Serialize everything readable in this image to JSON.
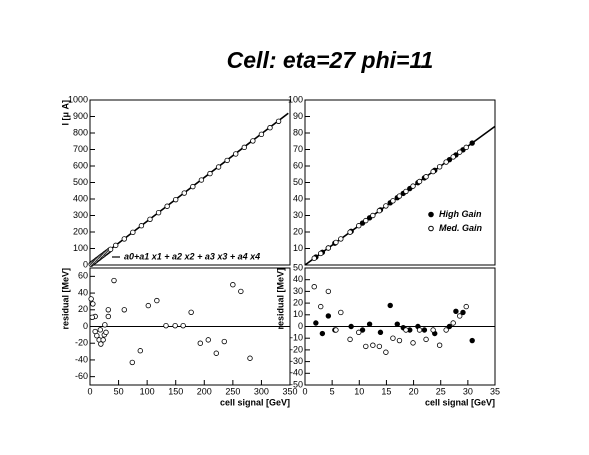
{
  "title": "Cell: eta=27 phi=11",
  "chart_data": [
    {
      "type": "scatter",
      "ylabel": "I [μ A]",
      "xlim": [
        0,
        350
      ],
      "ylim": [
        0,
        1000
      ],
      "yticks": [
        0,
        100,
        200,
        300,
        400,
        500,
        600,
        700,
        800,
        900,
        1000
      ],
      "legend": "lower right",
      "series": [
        {
          "name": "a0+a1 x1 + a2 x2 + a3 x3 + a4 x4",
          "style": "line",
          "color": "#000000",
          "x": [
            0,
            347
          ],
          "values": [
            0,
            920
          ]
        },
        {
          "style": "open",
          "color": "#000000",
          "x": [
            2,
            4,
            6,
            8,
            10,
            12,
            14,
            16,
            18,
            20,
            22,
            24,
            26,
            28,
            30,
            32,
            34,
            36,
            45,
            60,
            75,
            90,
            105,
            120,
            135,
            150,
            165,
            180,
            195,
            210,
            225,
            240,
            255,
            270,
            285,
            300,
            315,
            330
          ],
          "values": [
            5,
            11,
            16,
            21,
            26,
            32,
            37,
            42,
            48,
            53,
            58,
            63,
            69,
            74,
            79,
            84,
            90,
            95,
            119,
            158,
            198,
            238,
            277,
            317,
            356,
            396,
            436,
            475,
            515,
            554,
            594,
            634,
            673,
            713,
            752,
            792,
            832,
            871
          ]
        }
      ]
    },
    {
      "type": "scatter",
      "ylabel": "residual [MeV]",
      "xlabel": "cell signal [GeV]",
      "xlim": [
        0,
        350
      ],
      "ylim": [
        -70,
        70
      ],
      "xticks": [
        0,
        50,
        100,
        150,
        200,
        250,
        300,
        350
      ],
      "yticks": [
        -60,
        -40,
        -20,
        0,
        20,
        40,
        60
      ],
      "reference_line": 0,
      "series": [
        {
          "style": "open",
          "color": "#000000",
          "x": [
            2,
            5,
            9,
            4,
            9,
            12,
            16,
            19,
            23,
            18,
            25,
            28,
            26,
            32,
            32,
            42,
            60,
            74,
            88,
            102,
            117,
            133,
            149,
            163,
            177,
            193,
            207,
            221,
            235,
            250,
            264,
            280
          ],
          "values": [
            33,
            27,
            12,
            11,
            -6,
            -11,
            -16,
            -21,
            -16,
            -4,
            -10,
            -7,
            2,
            12,
            20,
            55,
            20,
            -43,
            -29,
            25,
            31,
            1,
            1,
            1,
            17,
            -20,
            -16,
            -32,
            -18,
            50,
            42,
            -38
          ]
        }
      ]
    },
    {
      "type": "scatter",
      "xlim": [
        0,
        35
      ],
      "ylim": [
        0,
        100
      ],
      "yticks": [
        10,
        20,
        30,
        40,
        50,
        60,
        70,
        80,
        90,
        100
      ],
      "legend": "right",
      "series": [
        {
          "style": "line",
          "color": "#000000",
          "x": [
            0,
            35
          ],
          "values": [
            0,
            84
          ]
        },
        {
          "name": "High Gain",
          "style": "filled",
          "color": "#000000",
          "x": [
            2,
            3.2,
            4.3,
            5.5,
            8.5,
            10.6,
            11.9,
            13.9,
            15.7,
            17,
            18.1,
            19.3,
            20.8,
            22,
            23.9,
            26.6,
            27.8,
            29.1,
            30.8
          ],
          "values": [
            4.8,
            7.7,
            10.3,
            13.2,
            20.4,
            25.4,
            28.6,
            33.4,
            37.7,
            40.8,
            43.4,
            46.3,
            49.9,
            52.8,
            57.4,
            63.8,
            66.7,
            69.8,
            73.9
          ]
        },
        {
          "name": "Med. Gain",
          "style": "open",
          "color": "#000000",
          "x": [
            1.7,
            2.9,
            4.3,
            5.7,
            6.6,
            8.3,
            9.9,
            11.2,
            12.5,
            13.7,
            14.9,
            16.2,
            17.4,
            18.6,
            19.9,
            21.1,
            22.3,
            23.6,
            24.8,
            26,
            27.3,
            28.5,
            29.7
          ],
          "values": [
            4.1,
            7.0,
            10.3,
            13.7,
            15.8,
            19.9,
            23.8,
            26.9,
            30,
            32.9,
            35.8,
            38.9,
            41.8,
            44.6,
            47.8,
            50.6,
            53.5,
            56.6,
            59.5,
            62.4,
            65.5,
            68.4,
            71.3
          ]
        }
      ]
    },
    {
      "type": "scatter",
      "ylabel": "residual [MeV]",
      "xlabel": "cell signal [GeV]",
      "xlim": [
        0,
        35
      ],
      "ylim": [
        -50,
        50
      ],
      "xticks": [
        0,
        5,
        10,
        15,
        20,
        25,
        30,
        35
      ],
      "yticks": [
        -50,
        -40,
        -30,
        -20,
        -10,
        0,
        10,
        20,
        30,
        40,
        50
      ],
      "reference_line": 0,
      "series": [
        {
          "style": "filled",
          "color": "#000000",
          "x": [
            2,
            3.2,
            4.3,
            5.5,
            8.5,
            10.6,
            11.9,
            13.9,
            15.7,
            17,
            18.1,
            19.3,
            20.8,
            22,
            23.9,
            26.6,
            27.8,
            29.1,
            30.8
          ],
          "values": [
            3,
            -6,
            9,
            -3,
            0,
            -3,
            2,
            -5,
            18,
            2,
            -1,
            -3,
            0,
            -3,
            -6,
            0,
            13,
            12,
            -12
          ]
        },
        {
          "style": "open",
          "color": "#000000",
          "x": [
            1.7,
            2.9,
            4.3,
            5.7,
            6.6,
            8.3,
            9.9,
            11.2,
            12.5,
            13.7,
            14.9,
            16.2,
            17.4,
            18.6,
            19.9,
            21.1,
            22.3,
            23.6,
            24.8,
            26,
            27.3,
            28.5,
            29.7
          ],
          "values": [
            34,
            17,
            30,
            -3,
            12,
            -11,
            -5,
            -17,
            -16,
            -17,
            -22,
            -10,
            -12,
            -3,
            -14,
            -3,
            -11,
            -3,
            -16,
            -3,
            3,
            9,
            17
          ]
        }
      ]
    }
  ]
}
